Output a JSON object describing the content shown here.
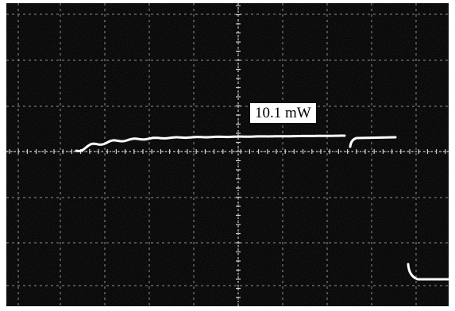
{
  "photo": {
    "label": "10.1 mW",
    "colors": {
      "screen": "#070707",
      "grid": "#bdbdbd",
      "trace": "#ffffff",
      "label_bg": "#ffffff",
      "label_text": "#000000"
    }
  }
}
